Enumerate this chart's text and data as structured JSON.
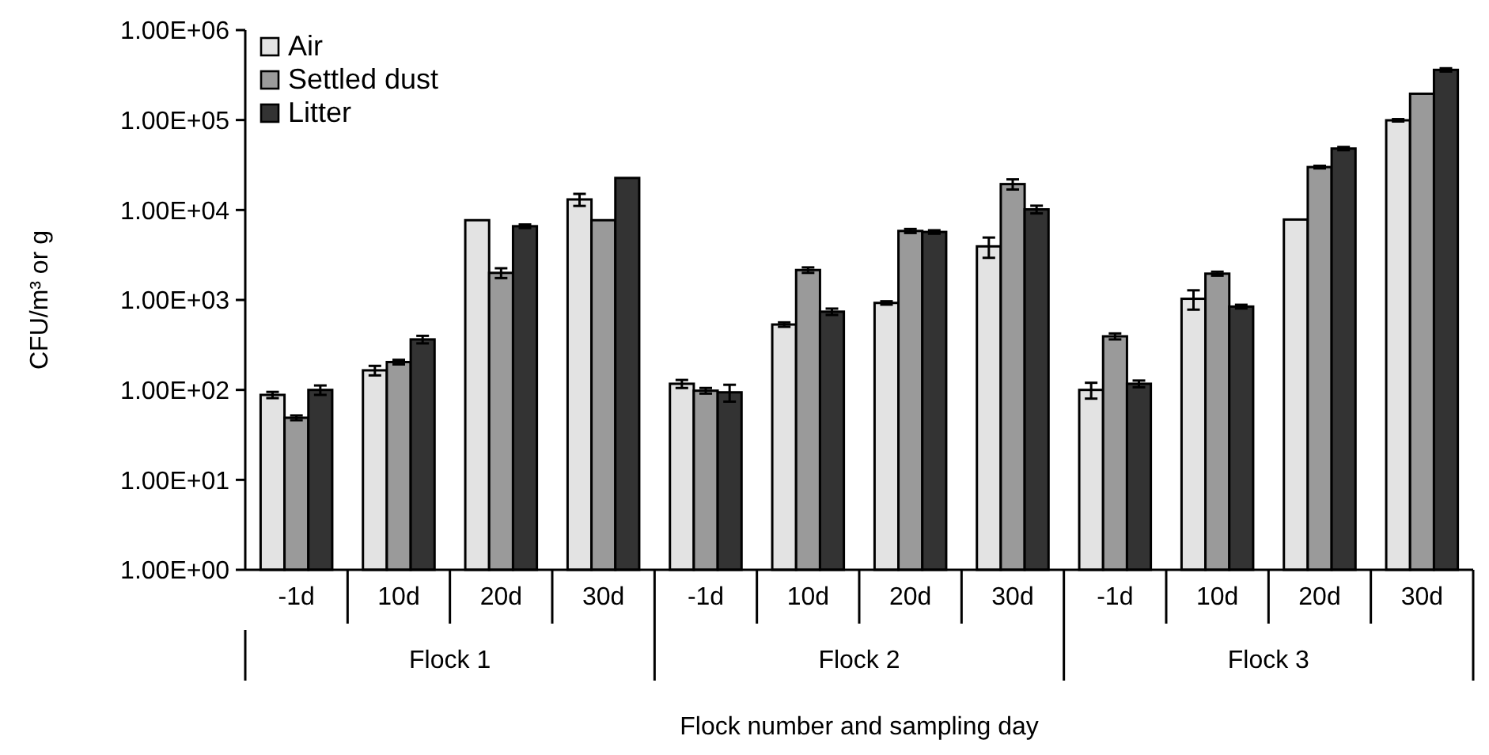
{
  "chart_data": {
    "type": "bar",
    "xlabel": "Flock number and sampling day",
    "ylabel": "CFU/m³ or g",
    "log": true,
    "legend": "top left",
    "grid": false,
    "categories": [
      "-1d",
      "10d",
      "20d",
      "30d",
      "-1d",
      "10d",
      "20d",
      "30d",
      "-1d",
      "10d",
      "20d",
      "30d"
    ],
    "annotations": [
      "Flock 1",
      "Flock 2",
      "Flock 3"
    ],
    "ylim": [
      1,
      1000000
    ],
    "yticks": [
      {
        "value": 1,
        "label": "1.00E+00"
      },
      {
        "value": 10,
        "label": "1.00E+01"
      },
      {
        "value": 100,
        "label": "1.00E+02"
      },
      {
        "value": 1000,
        "label": "1.00E+03"
      },
      {
        "value": 10000,
        "label": "1.00E+04"
      },
      {
        "value": 100000,
        "label": "1.00E+05"
      },
      {
        "value": 1000000,
        "label": "1.00E+06"
      }
    ],
    "series": [
      {
        "name": "Air",
        "color": "#e3e3e3",
        "values": [
          88,
          165,
          7700,
          13100,
          117,
          533,
          927,
          3940,
          100,
          1030,
          7830,
          99300
        ],
        "errors": [
          7,
          20,
          null,
          2000,
          12,
          30,
          40,
          1000,
          20,
          250,
          null,
          3000
        ]
      },
      {
        "name": "Settled dust",
        "color": "#9a9a9a",
        "values": [
          49,
          204,
          2000,
          7700,
          98,
          2150,
          5850,
          19400,
          394,
          1960,
          30000,
          196000
        ],
        "errors": [
          3,
          12,
          250,
          null,
          7,
          150,
          300,
          2500,
          30,
          100,
          1000,
          null
        ]
      },
      {
        "name": "Litter",
        "color": "#333333",
        "values": [
          100,
          364,
          6600,
          22700,
          94,
          741,
          5700,
          10160,
          117,
          844,
          48200,
          361000
        ],
        "errors": [
          12,
          35,
          300,
          null,
          20,
          60,
          250,
          1000,
          10,
          40,
          2000,
          15000
        ]
      }
    ]
  }
}
